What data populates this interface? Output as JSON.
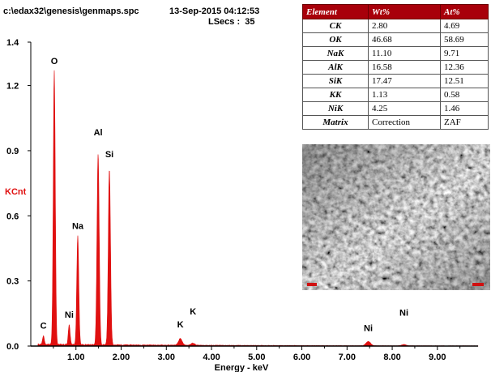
{
  "header": {
    "path": "c:\\edax32\\genesis\\genmaps.spc",
    "datetime": "13-Sep-2015 04:12:53",
    "lsecs": "LSecs :  35"
  },
  "colors": {
    "spectrum": "#e01010",
    "table_header": "#a8000a",
    "axis": "#000000"
  },
  "table": {
    "columns": [
      "Element",
      "Wt%",
      "At%"
    ],
    "rows": [
      {
        "element": "CK",
        "wt": "2.80",
        "at": "4.69"
      },
      {
        "element": "OK",
        "wt": "46.68",
        "at": "58.69"
      },
      {
        "element": "NaK",
        "wt": "11.10",
        "at": "9.71"
      },
      {
        "element": "AlK",
        "wt": "16.58",
        "at": "12.36"
      },
      {
        "element": "SiK",
        "wt": "17.47",
        "at": "12.51"
      },
      {
        "element": "KK",
        "wt": "1.13",
        "at": "0.58"
      },
      {
        "element": "NiK",
        "wt": "4.25",
        "at": "1.46"
      },
      {
        "element": "Matrix",
        "wt": "Correction",
        "at": "ZAF"
      }
    ]
  },
  "chart_data": {
    "type": "line",
    "xlabel": "Energy - keV",
    "ylabel": "KCnt",
    "xlim": [
      0.0,
      9.9
    ],
    "ylim": [
      0.0,
      1.4
    ],
    "xticks": [
      1.0,
      2.0,
      3.0,
      4.0,
      5.0,
      6.0,
      7.0,
      8.0,
      9.0
    ],
    "xtick_labels": [
      "1.00",
      "2.00",
      "3.00",
      "4.00",
      "5.00",
      "6.00",
      "7.00",
      "8.00",
      "9.00"
    ],
    "yticks": [
      0.0,
      0.3,
      0.6,
      0.9,
      1.2,
      1.4
    ],
    "ytick_labels": [
      "0.0",
      "0.3",
      "0.6",
      "0.9",
      "1.2",
      "1.4"
    ],
    "grid": false,
    "background": 0.008,
    "peaks": [
      {
        "x": 0.28,
        "y": 0.04,
        "w": 0.018
      },
      {
        "x": 0.52,
        "y": 1.26,
        "w": 0.022
      },
      {
        "x": 0.85,
        "y": 0.09,
        "w": 0.02
      },
      {
        "x": 1.04,
        "y": 0.5,
        "w": 0.022
      },
      {
        "x": 1.49,
        "y": 0.88,
        "w": 0.024
      },
      {
        "x": 1.74,
        "y": 0.81,
        "w": 0.024
      },
      {
        "x": 3.31,
        "y": 0.03,
        "w": 0.04
      },
      {
        "x": 3.59,
        "y": 0.01,
        "w": 0.04
      },
      {
        "x": 7.47,
        "y": 0.02,
        "w": 0.05
      },
      {
        "x": 8.26,
        "y": 0.006,
        "w": 0.05
      }
    ],
    "annotations": [
      {
        "label": "C",
        "x": 0.28,
        "y": 0.08
      },
      {
        "label": "O",
        "x": 0.52,
        "y": 1.3
      },
      {
        "label": "Ni",
        "x": 0.85,
        "y": 0.13
      },
      {
        "label": "Na",
        "x": 1.04,
        "y": 0.54
      },
      {
        "label": "Al",
        "x": 1.49,
        "y": 0.97
      },
      {
        "label": "Si",
        "x": 1.74,
        "y": 0.87
      },
      {
        "label": "K",
        "x": 3.31,
        "y": 0.085
      },
      {
        "label": "K",
        "x": 3.59,
        "y": 0.145
      },
      {
        "label": "Ni",
        "x": 7.47,
        "y": 0.07
      },
      {
        "label": "Ni",
        "x": 8.26,
        "y": 0.14
      }
    ]
  }
}
